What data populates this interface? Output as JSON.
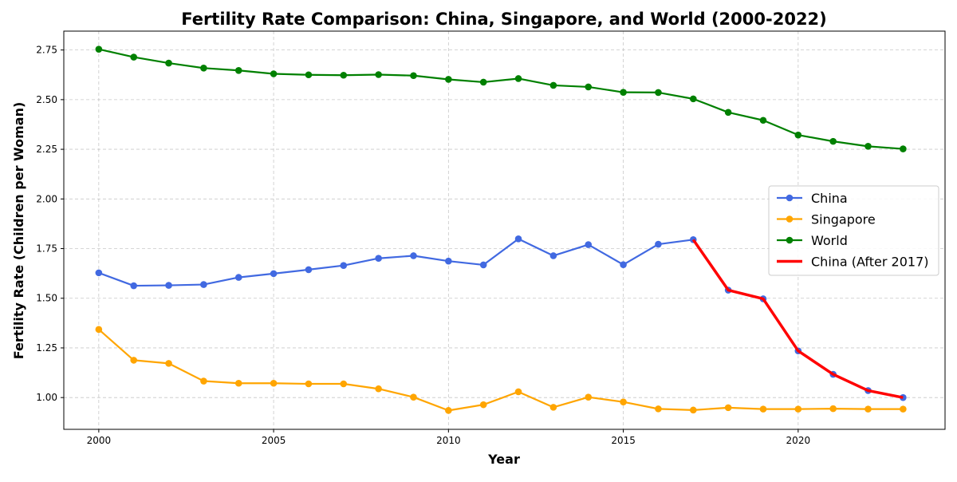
{
  "chart_data": {
    "type": "line",
    "title": "Fertility Rate Comparison: China, Singapore, and World (2000-2022)",
    "xlabel": "Year",
    "ylabel": "Fertility Rate (Children per Woman)",
    "xlim": [
      1999,
      2024.2
    ],
    "ylim": [
      0.84,
      2.845
    ],
    "x_ticks": [
      2000,
      2005,
      2010,
      2015,
      2020
    ],
    "y_ticks": [
      1.0,
      1.25,
      1.5,
      1.75,
      2.0,
      2.25,
      2.5,
      2.75
    ],
    "y_tick_labels": [
      "1.00",
      "1.25",
      "1.50",
      "1.75",
      "2.00",
      "2.25",
      "2.50",
      "2.75"
    ],
    "grid": true,
    "legend_position": "right",
    "x": [
      2000,
      2001,
      2002,
      2003,
      2004,
      2005,
      2006,
      2007,
      2008,
      2009,
      2010,
      2011,
      2012,
      2013,
      2014,
      2015,
      2016,
      2017,
      2018,
      2019,
      2020,
      2021,
      2022,
      2023
    ],
    "series": [
      {
        "name": "China",
        "color": "#4169E1",
        "marker": true,
        "values": [
          1.628,
          1.563,
          1.565,
          1.569,
          1.605,
          1.624,
          1.644,
          1.665,
          1.701,
          1.714,
          1.687,
          1.668,
          1.799,
          1.714,
          1.77,
          1.669,
          1.772,
          1.795,
          1.541,
          1.497,
          1.235,
          1.117,
          1.035,
          1.0
        ]
      },
      {
        "name": "Singapore",
        "color": "#FFA500",
        "marker": true,
        "values": [
          1.343,
          1.188,
          1.172,
          1.083,
          1.072,
          1.072,
          1.069,
          1.069,
          1.044,
          1.002,
          0.935,
          0.964,
          1.029,
          0.951,
          1.002,
          0.978,
          0.943,
          0.937,
          0.949,
          0.942,
          0.942,
          0.944,
          0.942,
          0.942
        ]
      },
      {
        "name": "World",
        "color": "#008000",
        "marker": true,
        "values": [
          2.754,
          2.714,
          2.684,
          2.659,
          2.647,
          2.63,
          2.625,
          2.623,
          2.626,
          2.621,
          2.602,
          2.588,
          2.606,
          2.572,
          2.564,
          2.537,
          2.536,
          2.504,
          2.436,
          2.396,
          2.322,
          2.29,
          2.265,
          2.252
        ]
      },
      {
        "name": "China (After 2017)",
        "color": "#FF0000",
        "marker": false,
        "x": [
          2017,
          2018,
          2019,
          2020,
          2021,
          2022,
          2023
        ],
        "values": [
          1.795,
          1.541,
          1.497,
          1.235,
          1.117,
          1.035,
          1.0
        ]
      }
    ]
  }
}
